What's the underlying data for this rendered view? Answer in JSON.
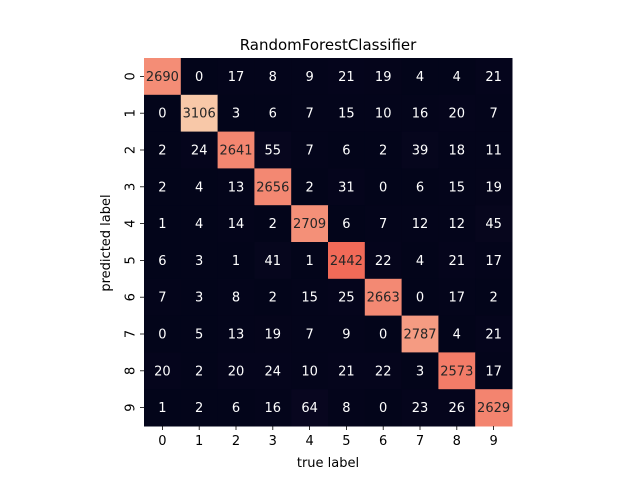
{
  "chart_data": {
    "type": "heatmap",
    "title": "RandomForestClassifier",
    "xlabel": "true label",
    "ylabel": "predicted label",
    "x_categories": [
      "0",
      "1",
      "2",
      "3",
      "4",
      "5",
      "6",
      "7",
      "8",
      "9"
    ],
    "y_categories": [
      "0",
      "1",
      "2",
      "3",
      "4",
      "5",
      "6",
      "7",
      "8",
      "9"
    ],
    "matrix": [
      [
        2690,
        0,
        17,
        8,
        9,
        21,
        19,
        4,
        4,
        21
      ],
      [
        0,
        3106,
        3,
        6,
        7,
        15,
        10,
        16,
        20,
        7
      ],
      [
        2,
        24,
        2641,
        55,
        7,
        6,
        2,
        39,
        18,
        11
      ],
      [
        2,
        4,
        13,
        2656,
        2,
        31,
        0,
        6,
        15,
        19
      ],
      [
        1,
        4,
        14,
        2,
        2709,
        6,
        7,
        12,
        12,
        45
      ],
      [
        6,
        3,
        1,
        41,
        1,
        2442,
        22,
        4,
        21,
        17
      ],
      [
        7,
        3,
        8,
        2,
        15,
        25,
        2663,
        0,
        17,
        2
      ],
      [
        0,
        5,
        13,
        19,
        7,
        9,
        0,
        2787,
        4,
        21
      ],
      [
        20,
        2,
        20,
        24,
        10,
        21,
        22,
        3,
        2573,
        17
      ],
      [
        1,
        2,
        6,
        16,
        64,
        8,
        0,
        23,
        26,
        2629
      ]
    ],
    "colorbar": false,
    "colors": {
      "low": "#03051a",
      "high": "#f8c8a8",
      "text_on_dark": "#ffffff",
      "text_on_light": "#262626"
    }
  }
}
